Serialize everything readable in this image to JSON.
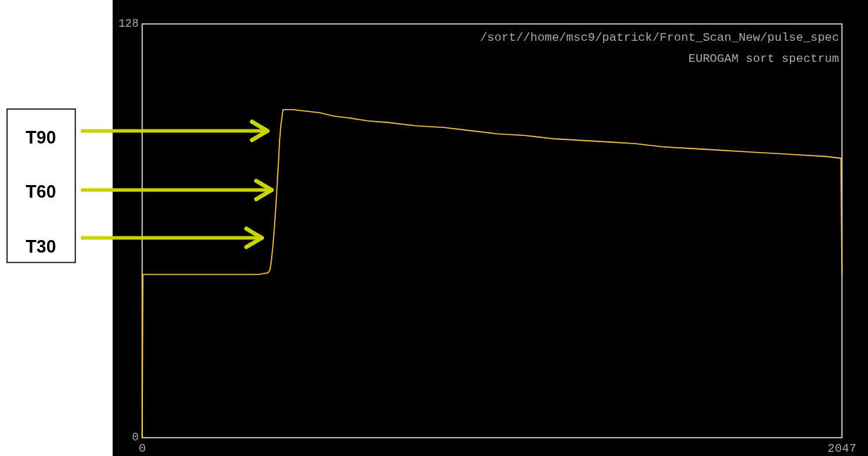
{
  "chart_data": {
    "type": "line",
    "title": "/sort//home/msc9/patrick/Front_Scan_New/pulse_spec",
    "subtitle": "EUROGAM sort spectrum",
    "x": [
      0,
      2,
      60,
      120,
      200,
      280,
      340,
      368,
      374,
      378,
      382,
      386,
      390,
      394,
      398,
      402,
      406,
      412,
      440,
      480,
      520,
      560,
      600,
      660,
      720,
      800,
      880,
      960,
      1040,
      1120,
      1200,
      1280,
      1360,
      1440,
      1520,
      1600,
      1680,
      1760,
      1840,
      1920,
      2000,
      2040,
      2044,
      2047
    ],
    "values": [
      0,
      50.5,
      50.5,
      50.5,
      50.5,
      50.5,
      50.5,
      51,
      52,
      55,
      59,
      64,
      70,
      77,
      84,
      92,
      97,
      101.5,
      101.5,
      101,
      100.5,
      99.5,
      99,
      98,
      97.5,
      96.5,
      96,
      95,
      94,
      93.5,
      92.5,
      92,
      91.5,
      91,
      90,
      89.5,
      89,
      88.5,
      88,
      87.5,
      87,
      86.5,
      86.5,
      50.3
    ],
    "color": "#f5c451",
    "xlim": [
      0,
      2047
    ],
    "ylim": [
      0,
      128
    ],
    "xticks": [
      0,
      2047
    ],
    "yticks": [
      0,
      128
    ],
    "grid": false,
    "annotations": [
      "T90",
      "T60",
      "T30"
    ]
  }
}
